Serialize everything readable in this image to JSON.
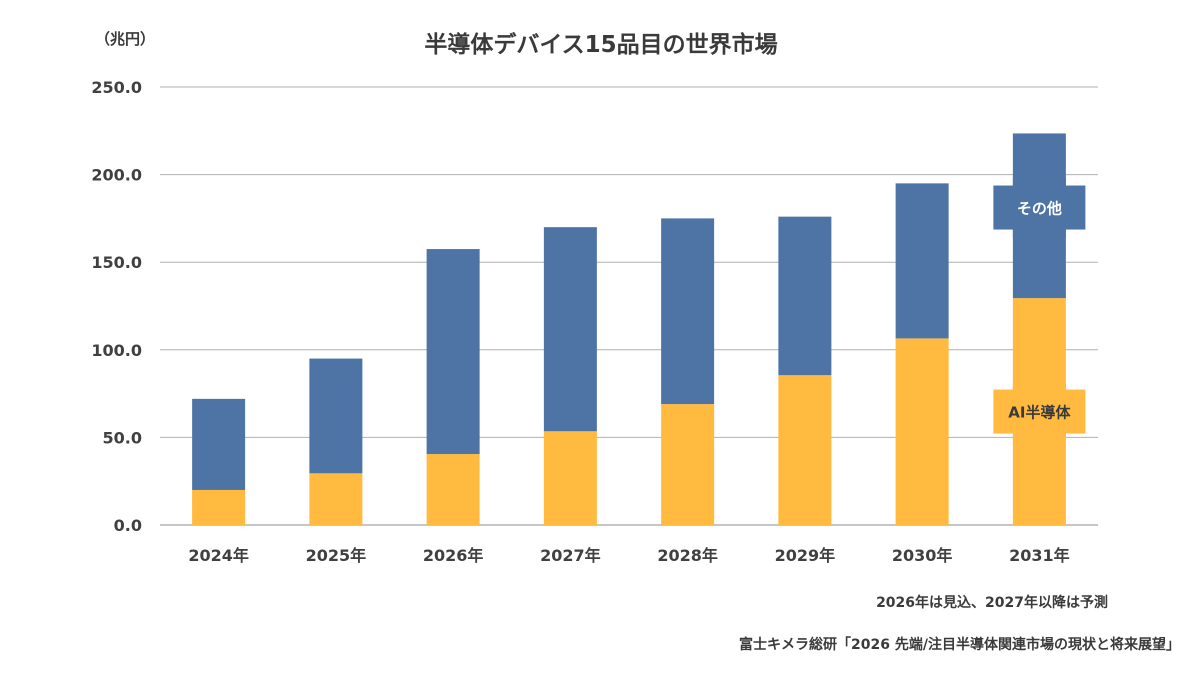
{
  "chart_data": {
    "type": "bar",
    "stacked": true,
    "title": "半導体デバイス15品目の世界市場",
    "unit_label": "（兆円）",
    "categories": [
      "2024年",
      "2025年",
      "2026年",
      "2027年",
      "2028年",
      "2029年",
      "2030年",
      "2031年"
    ],
    "series": [
      {
        "name": "AI半導体",
        "color": "#FFBA3F",
        "values": [
          20,
          29.5,
          40.5,
          53.5,
          69,
          85.5,
          106.5,
          129.5
        ]
      },
      {
        "name": "その他",
        "color": "#4E74A6",
        "values": [
          52,
          65.5,
          117,
          116.5,
          106,
          90.5,
          88.5,
          94
        ]
      }
    ],
    "ylim": [
      0,
      250
    ],
    "yticks": [
      "0.0",
      "50.0",
      "100.0",
      "150.0",
      "200.0",
      "250.0"
    ],
    "grid": true,
    "notes": [
      "2026年は見込、2027年以降は予測",
      "富士キメラ総研「2026 先端/注目半導体関連市場の現状と将来展望」"
    ]
  }
}
